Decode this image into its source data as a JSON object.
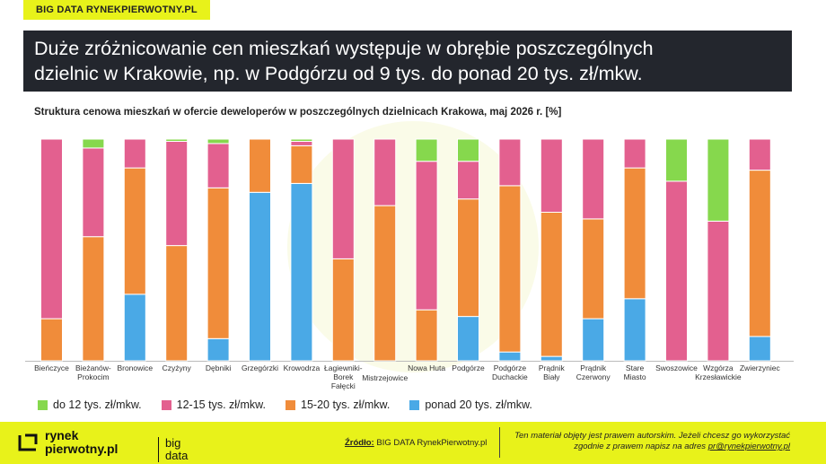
{
  "header": {
    "brand_tag": "BIG DATA RYNEKPIERWOTNY.PL",
    "title_line1": "Duże zróżnicowanie cen mieszkań występuje w obrębie poszczególnych",
    "title_line2": "dzielnic w Krakowie, np. w Podgórzu od 9 tys. do ponad 20 tys. zł/mkw."
  },
  "chart_data": {
    "type": "bar",
    "stacked": true,
    "percent": true,
    "title": "Struktura cenowa mieszkań w ofercie deweloperów w poszczególnych dzielnicach Krakowa,  maj 2026 r. [%]",
    "ylim": [
      0,
      100
    ],
    "grid": false,
    "legend_position": "bottom",
    "categories": [
      [
        "Bieńczyce"
      ],
      [
        "Bieżanów-",
        "Prokocim"
      ],
      [
        "Bronowice"
      ],
      [
        "Czyżyny"
      ],
      [
        "Dębniki"
      ],
      [
        "Grzegórzki"
      ],
      [
        "Krowodrza"
      ],
      [
        "Łagiewniki-",
        "Borek",
        "Fałęcki"
      ],
      [
        "Mistrzejowice"
      ],
      [
        "Nowa Huta"
      ],
      [
        "Podgórze"
      ],
      [
        "Podgórze",
        "Duchackie"
      ],
      [
        "Prądnik",
        "Biały"
      ],
      [
        "Prądnik",
        "Czerwony"
      ],
      [
        "Stare",
        "Miasto"
      ],
      [
        "Swoszowice"
      ],
      [
        "Wzgórza",
        "Krzesławickie"
      ],
      [
        "Zwierzyniec"
      ]
    ],
    "series": [
      {
        "name": "ponad 20 tys. zł/mkw.",
        "color": "#4aa9e6",
        "values": [
          0,
          0,
          30,
          0,
          10,
          76,
          80,
          0,
          0,
          0,
          20,
          4,
          2,
          19,
          28,
          0,
          0,
          11
        ]
      },
      {
        "name": "15-20 tys. zł/mkw.",
        "color": "#f08c3a",
        "values": [
          19,
          56,
          57,
          52,
          68,
          24,
          17,
          46,
          70,
          23,
          53,
          75,
          65,
          45,
          59,
          0,
          0,
          75
        ]
      },
      {
        "name": "12-15 tys. zł/mkw.",
        "color": "#e3608f",
        "values": [
          81,
          40,
          13,
          47,
          20,
          0,
          2,
          54,
          30,
          67,
          17,
          21,
          33,
          36,
          13,
          81,
          63,
          14
        ]
      },
      {
        "name": "do 12 tys. zł/mkw.",
        "color": "#86d84d",
        "values": [
          0,
          4,
          0,
          1,
          2,
          0,
          1,
          0,
          0,
          10,
          10,
          0,
          0,
          0,
          0,
          19,
          37,
          0
        ]
      }
    ]
  },
  "legend": [
    {
      "label": "do 12 tys. zł/mkw.",
      "color": "#86d84d"
    },
    {
      "label": "12-15 tys. zł/mkw.",
      "color": "#e3608f"
    },
    {
      "label": "15-20 tys. zł/mkw.",
      "color": "#f08c3a"
    },
    {
      "label": "ponad 20 tys. zł/mkw.",
      "color": "#4aa9e6"
    }
  ],
  "footer": {
    "logo_line1": "rynek",
    "logo_line2": "pierwotny.pl",
    "logo_right_line1": "big",
    "logo_right_line2": "data",
    "source_label": "Źródło:",
    "source_text": " BIG DATA RynekPierwotny.pl",
    "copyright_line1": "Ten materiał objęty jest prawem autorskim. Jeżeli chcesz go wykorzystać",
    "copyright_line2_prefix": "zgodnie z prawem napisz na adres ",
    "copyright_email": "pr@rynekpierwotny.pl"
  }
}
